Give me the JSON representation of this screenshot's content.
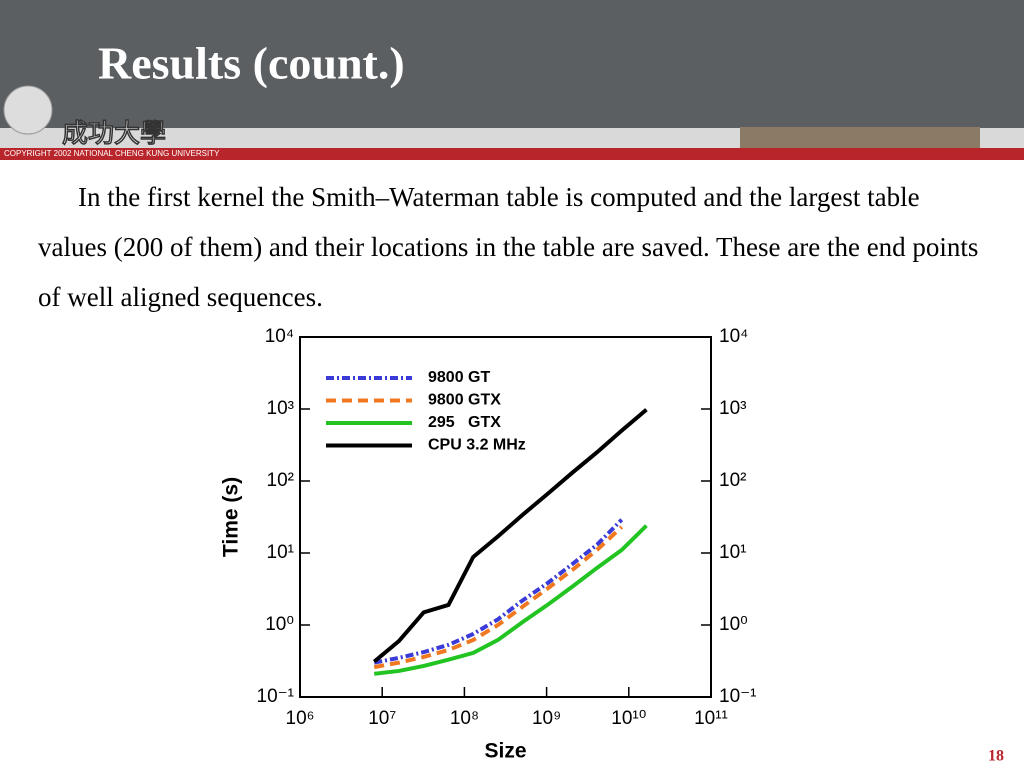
{
  "header": {
    "title": "Results (count.)",
    "logo_text": "成功大學",
    "copyright": "COPYRIGHT 2002 NATIONAL CHENG KUNG UNIVERSITY"
  },
  "body": {
    "paragraph": "In the first kernel the Smith–Waterman table is computed and the largest table values (200 of them) and their locations in the table are saved. These are the end points of well aligned sequences."
  },
  "page_number": "18",
  "chart_data": {
    "type": "line",
    "x_label": "Size",
    "y_label": "Time (s)",
    "log_x": true,
    "log_y": true,
    "legend": "top-left",
    "x": [
      8000000,
      16000000,
      32000000,
      64000000,
      128000000,
      256000000,
      512000000,
      1024000000,
      2048000000,
      4096000000,
      8192000000,
      16384000000
    ],
    "series": [
      {
        "name": "9800 GT",
        "color": "#3a3ad8",
        "dash": "8 3 2 3",
        "values": [
          0.3,
          0.35,
          0.42,
          0.53,
          0.75,
          1.2,
          2.2,
          3.8,
          7.0,
          13,
          29,
          null
        ]
      },
      {
        "name": "9800 GTX",
        "color": "#f07820",
        "dash": "10 6",
        "values": [
          0.26,
          0.3,
          0.36,
          0.45,
          0.62,
          1.0,
          1.8,
          3.2,
          5.8,
          11,
          23,
          null
        ]
      },
      {
        "name": "295   GTX",
        "color": "#22c422",
        "dash": "none",
        "values": [
          0.21,
          0.23,
          0.27,
          0.33,
          0.41,
          0.62,
          1.1,
          1.9,
          3.4,
          6.2,
          11,
          24
        ]
      },
      {
        "name": "CPU 3.2 MHz",
        "color": "#000000",
        "dash": "none",
        "values": [
          0.31,
          0.6,
          1.5,
          1.9,
          8.8,
          17,
          34,
          66,
          130,
          250,
          500,
          980
        ]
      }
    ],
    "xlim": [
      1000000,
      100000000000
    ],
    "xticks": [
      {
        "value": 1000000,
        "label": "10⁶"
      },
      {
        "value": 10000000,
        "label": "10⁷"
      },
      {
        "value": 100000000,
        "label": "10⁸"
      },
      {
        "value": 1000000000,
        "label": "10⁹"
      },
      {
        "value": 10000000000,
        "label": "10¹⁰"
      },
      {
        "value": 100000000000,
        "label": "10¹¹"
      }
    ],
    "ylim": [
      0.1,
      10000
    ],
    "yticks": [
      {
        "value": 0.1,
        "label": "10⁻¹"
      },
      {
        "value": 1,
        "label": "10⁰"
      },
      {
        "value": 10,
        "label": "10¹"
      },
      {
        "value": 100,
        "label": "10²"
      },
      {
        "value": 1000,
        "label": "10³"
      },
      {
        "value": 10000,
        "label": "10⁴"
      }
    ]
  }
}
